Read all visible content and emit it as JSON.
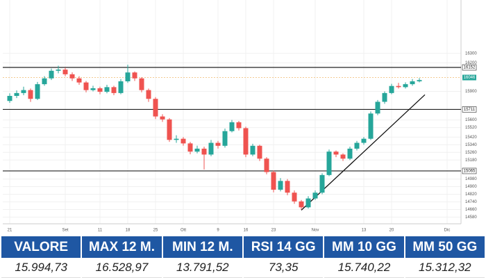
{
  "chart_data": {
    "type": "candlestick",
    "up_color": "#26a69a",
    "down_color": "#ef5350",
    "open": [
      15800,
      15853,
      15883,
      15914,
      15822,
      15976,
      16037,
      16117,
      16129,
      16080,
      16037,
      15994,
      15914,
      15933,
      15896,
      15945,
      15883,
      16006,
      16099,
      16037,
      15914,
      15822,
      15637,
      15606,
      15391,
      15403,
      15354,
      15268,
      15299,
      15237,
      15360,
      15329,
      15483,
      15576,
      15514,
      15237,
      15329,
      15194,
      15053,
      14868,
      14960,
      14837,
      14745,
      14683,
      14776,
      14837,
      15022,
      15268,
      15237,
      15194,
      15299,
      15360,
      15403,
      15668,
      15791,
      15883,
      15957,
      15945,
      15976,
      16006
    ],
    "high": [
      15880,
      15910,
      15950,
      15930,
      16000,
      16060,
      16140,
      16170,
      16150,
      16100,
      16060,
      16010,
      15960,
      15950,
      15970,
      15960,
      16030,
      16180,
      16110,
      16050,
      15930,
      15840,
      15660,
      15620,
      15440,
      15420,
      15370,
      15330,
      15320,
      15390,
      15380,
      15510,
      15600,
      15590,
      15530,
      15350,
      15340,
      15210,
      15070,
      14990,
      14980,
      14860,
      14760,
      14800,
      14860,
      15040,
      15290,
      15280,
      15250,
      15320,
      15380,
      15420,
      15690,
      15810,
      15900,
      15980,
      15990,
      15995,
      16030,
      16040
    ],
    "low": [
      15780,
      15830,
      15860,
      15790,
      15810,
      15960,
      16020,
      16090,
      16060,
      16010,
      15970,
      15890,
      15900,
      15870,
      15880,
      15860,
      15870,
      15990,
      16010,
      15890,
      15790,
      15610,
      15580,
      15370,
      15360,
      15330,
      15240,
      15250,
      15080,
      15220,
      15300,
      15310,
      15470,
      15490,
      15210,
      15220,
      15170,
      15030,
      14840,
      14850,
      14810,
      14720,
      14660,
      14670,
      14760,
      14820,
      15010,
      15210,
      15170,
      15180,
      15280,
      15340,
      15390,
      15650,
      15770,
      15870,
      15930,
      15930,
      15960,
      15995
    ],
    "close": [
      15853,
      15883,
      15914,
      15822,
      15976,
      16037,
      16117,
      16129,
      16080,
      16037,
      15994,
      15914,
      15933,
      15896,
      15945,
      15883,
      16006,
      16099,
      16037,
      15914,
      15822,
      15637,
      15606,
      15391,
      15403,
      15354,
      15268,
      15299,
      15237,
      15360,
      15329,
      15483,
      15576,
      15514,
      15237,
      15329,
      15194,
      15053,
      14868,
      14960,
      14837,
      14745,
      14683,
      14776,
      14837,
      15022,
      15268,
      15237,
      15194,
      15299,
      15360,
      15403,
      15668,
      15791,
      15883,
      15957,
      15945,
      15976,
      16006,
      16019
    ],
    "xlim": [
      -1,
      65
    ],
    "xticks": [
      {
        "value": 0,
        "label": "21"
      },
      {
        "value": 8,
        "label": "Set"
      },
      {
        "value": 13,
        "label": "11"
      },
      {
        "value": 17,
        "label": "18"
      },
      {
        "value": 21,
        "label": "25"
      },
      {
        "value": 25,
        "label": "Ott"
      },
      {
        "value": 30,
        "label": "9"
      },
      {
        "value": 34,
        "label": "16"
      },
      {
        "value": 38,
        "label": "23"
      },
      {
        "value": 44,
        "label": "Nov"
      },
      {
        "value": 51,
        "label": "13"
      },
      {
        "value": 55,
        "label": "20"
      },
      {
        "value": 63,
        "label": "Dic"
      }
    ],
    "ylim": [
      14510,
      16860
    ],
    "yticks": [
      14580,
      14660,
      14740,
      14820,
      14900,
      14980,
      15180,
      15260,
      15340,
      15420,
      15520,
      15600,
      15900,
      16200,
      16300
    ],
    "grid": true,
    "levels": [
      16152,
      15711,
      15065
    ],
    "last_price": 16046,
    "trendline": {
      "x": [
        42,
        59.8
      ],
      "y": [
        14653,
        15865
      ]
    }
  },
  "table": {
    "headers": [
      "VALORE",
      "MAX 12 M.",
      "MIN 12 M.",
      "RSI 14 GG",
      "MM 10 GG",
      "MM 50 GG"
    ],
    "values": [
      "15.994,73",
      "16.528,97",
      "13.791,52",
      "73,35",
      "15.740,22",
      "15.312,32"
    ]
  }
}
